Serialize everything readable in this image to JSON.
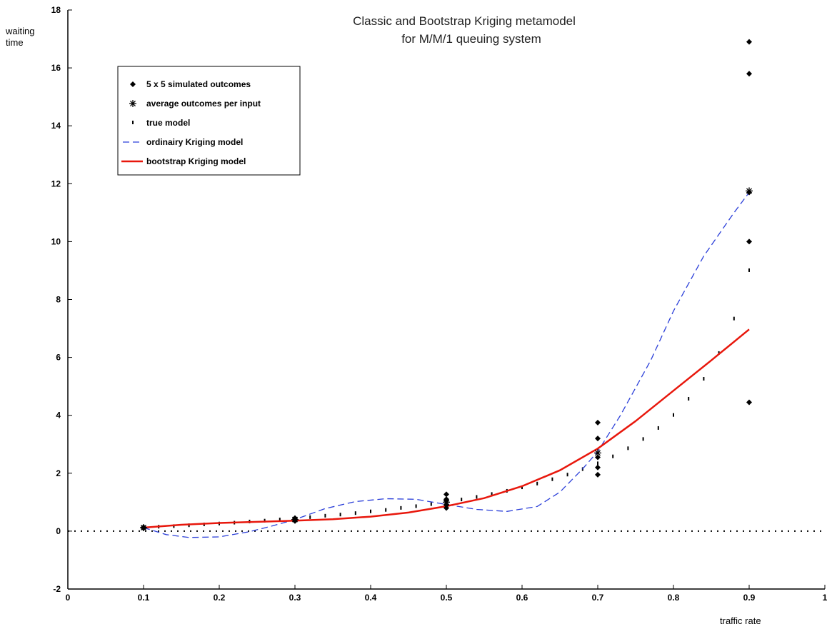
{
  "chart_data": {
    "type": "scatter",
    "title": "Classic and Bootstrap Kriging metamodel",
    "subtitle": "for M/M/1 queuing system",
    "xlabel": "traffic rate",
    "ylabel": [
      "waiting",
      "time"
    ],
    "xlim": [
      0,
      1
    ],
    "ylim": [
      -2,
      18
    ],
    "xticks": [
      "0",
      "0.1",
      "0.2",
      "0.3",
      "0.4",
      "0.5",
      "0.6",
      "0.7",
      "0.8",
      "0.9",
      "1"
    ],
    "yticks": [
      "-2",
      "0",
      "2",
      "4",
      "6",
      "8",
      "10",
      "12",
      "14",
      "16",
      "18"
    ],
    "grid": false,
    "legend_position": "top-left",
    "series": [
      {
        "name": "5 x 5 simulated outcomes",
        "marker": "diamond",
        "color": "#000000",
        "x": [
          0.1,
          0.1,
          0.1,
          0.3,
          0.3,
          0.3,
          0.5,
          0.5,
          0.5,
          0.5,
          0.5,
          0.7,
          0.7,
          0.7,
          0.7,
          0.7,
          0.9,
          0.9,
          0.9,
          0.9,
          0.9
        ],
        "y": [
          0.1,
          0.12,
          0.14,
          0.35,
          0.42,
          0.45,
          0.8,
          0.9,
          1.05,
          1.1,
          1.27,
          1.95,
          2.2,
          2.55,
          3.2,
          3.75,
          4.45,
          10.0,
          11.7,
          15.8,
          16.9
        ]
      },
      {
        "name": "average outcomes per input",
        "marker": "asterisk",
        "color": "#000000",
        "x": [
          0.1,
          0.3,
          0.5,
          0.7,
          0.9
        ],
        "y": [
          0.12,
          0.4,
          1.0,
          2.7,
          11.75
        ]
      },
      {
        "name": "true model",
        "marker": "dot",
        "color": "#000000",
        "x": [
          0.1,
          0.12,
          0.14,
          0.16,
          0.18,
          0.2,
          0.22,
          0.24,
          0.26,
          0.28,
          0.3,
          0.32,
          0.34,
          0.36,
          0.38,
          0.4,
          0.42,
          0.44,
          0.46,
          0.48,
          0.5,
          0.52,
          0.54,
          0.56,
          0.58,
          0.6,
          0.62,
          0.64,
          0.66,
          0.68,
          0.7,
          0.72,
          0.74,
          0.76,
          0.78,
          0.8,
          0.82,
          0.84,
          0.86,
          0.88,
          0.9
        ],
        "y": [
          0.11,
          0.14,
          0.16,
          0.19,
          0.22,
          0.25,
          0.28,
          0.32,
          0.35,
          0.39,
          0.43,
          0.47,
          0.52,
          0.56,
          0.61,
          0.67,
          0.72,
          0.79,
          0.85,
          0.92,
          1.0,
          1.08,
          1.17,
          1.27,
          1.38,
          1.5,
          1.63,
          1.78,
          1.94,
          2.13,
          2.33,
          2.57,
          2.85,
          3.17,
          3.55,
          4.0,
          4.56,
          5.25,
          6.14,
          7.33,
          9.0
        ]
      },
      {
        "name": "ordinairy Kriging model",
        "style": "dashed",
        "color": "#2b3fd9",
        "x": [
          0.1,
          0.13,
          0.16,
          0.2,
          0.24,
          0.27,
          0.3,
          0.34,
          0.38,
          0.42,
          0.46,
          0.5,
          0.54,
          0.58,
          0.62,
          0.65,
          0.68,
          0.7,
          0.73,
          0.77,
          0.8,
          0.84,
          0.88,
          0.9
        ],
        "y": [
          0.12,
          -0.12,
          -0.22,
          -0.2,
          -0.02,
          0.18,
          0.4,
          0.78,
          1.02,
          1.12,
          1.1,
          0.92,
          0.75,
          0.68,
          0.85,
          1.35,
          2.15,
          2.75,
          4.0,
          5.9,
          7.6,
          9.5,
          11.0,
          11.7
        ]
      },
      {
        "name": "bootstrap Kriging model",
        "style": "solid",
        "color": "#e8170c",
        "x": [
          0.1,
          0.15,
          0.2,
          0.25,
          0.3,
          0.35,
          0.4,
          0.45,
          0.5,
          0.55,
          0.6,
          0.65,
          0.7,
          0.75,
          0.8,
          0.85,
          0.9
        ],
        "y": [
          0.12,
          0.22,
          0.28,
          0.32,
          0.36,
          0.41,
          0.5,
          0.64,
          0.86,
          1.14,
          1.55,
          2.1,
          2.85,
          3.8,
          4.85,
          5.9,
          6.97
        ]
      }
    ],
    "reference_line": {
      "y": 0,
      "style": "dotted"
    }
  }
}
